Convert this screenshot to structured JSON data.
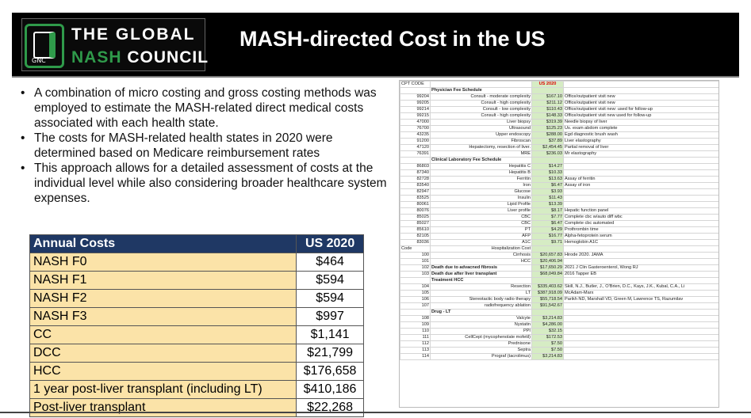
{
  "header": {
    "logo": {
      "line1": "THE GLOBAL",
      "line2_word1": "NASH",
      "line2_word2": "COUNCIL",
      "mark_text": "GNC"
    },
    "title": "MASH-directed Cost in the US"
  },
  "bullets": [
    "A combination of micro costing and gross costing methods was employed to estimate the MASH-related direct medical costs associated with each health state.",
    "The costs for MASH-related health states in 2020 were determined based on Medicare reimbursement rates",
    "This approach allows for a detailed assessment of costs at the individual level while also considering broader healthcare system expenses."
  ],
  "costs_table": {
    "headers": [
      "Annual Costs",
      "US 2020"
    ],
    "rows": [
      [
        "NASH F0",
        "$464"
      ],
      [
        "NASH F1",
        "$594"
      ],
      [
        "NASH F2",
        "$594"
      ],
      [
        "NASH F3",
        "$997"
      ],
      [
        "CC",
        "$1,141"
      ],
      [
        "DCC",
        "$21,799"
      ],
      [
        "HCC",
        "$176,658"
      ],
      [
        "1 year post-liver transplant (including LT)",
        "$410,186"
      ],
      [
        "Post-liver transplant",
        "$22,268"
      ]
    ]
  },
  "cpt_sheet": {
    "rows": [
      {
        "t": "hdr",
        "c": [
          "CPT CODE",
          "",
          "US 2020",
          ""
        ]
      },
      {
        "t": "sec",
        "c": [
          "",
          "Physician Fee Schedule",
          "",
          ""
        ]
      },
      {
        "t": "row",
        "c": [
          "99204",
          "Consult - moderate complexity",
          "$167.10",
          "Office/outpatient visit new"
        ]
      },
      {
        "t": "row",
        "c": [
          "99205",
          "Consult - high complexity",
          "$211.12",
          "Office/outpatient visit new"
        ]
      },
      {
        "t": "row",
        "c": [
          "99214",
          "Consult - low complexity",
          "$110.43",
          "Office/outpatient visit new: used for follow-up"
        ]
      },
      {
        "t": "row",
        "c": [
          "99215",
          "Consult - high complexity",
          "$148.33",
          "Office/outpatient visit new used for follow-up"
        ]
      },
      {
        "t": "row",
        "c": [
          "47000",
          "Liver biopsy",
          "$319.39",
          "Needle biopsy of liver"
        ]
      },
      {
        "t": "row",
        "c": [
          "76700",
          "Ultrasound",
          "$125.23",
          "Us. exam abdom complete"
        ]
      },
      {
        "t": "row",
        "c": [
          "43235",
          "Upper endoscopy",
          "$288.00",
          "Egd diagnostic brush wash"
        ]
      },
      {
        "t": "row",
        "c": [
          "91200",
          "Fibroscan",
          "$37.89",
          "Liver elastography"
        ]
      },
      {
        "t": "row",
        "c": [
          "47120",
          "Hepatectomy, resection of liver.",
          "$2,454.45",
          "Partial removal of liver"
        ]
      },
      {
        "t": "row",
        "c": [
          "76391",
          "MRE",
          "$236.03",
          "Mr elastography"
        ]
      },
      {
        "t": "sec",
        "c": [
          "",
          "Clinical Laboratory Fee Schedule",
          "",
          ""
        ]
      },
      {
        "t": "row",
        "c": [
          "86803",
          "Hepatitis C",
          "$14.27",
          ""
        ]
      },
      {
        "t": "row",
        "c": [
          "87340",
          "Hepatitis B",
          "$10.33",
          ""
        ]
      },
      {
        "t": "row",
        "c": [
          "82728",
          "Ferritin",
          "$13.63",
          "Assay of ferritin"
        ]
      },
      {
        "t": "row",
        "c": [
          "83540",
          "Iron",
          "$6.47",
          "Assay of iron"
        ]
      },
      {
        "t": "row",
        "c": [
          "82947",
          "Glucose",
          "$3.93",
          ""
        ]
      },
      {
        "t": "row",
        "c": [
          "83525",
          "Insulin",
          "$11.43",
          ""
        ]
      },
      {
        "t": "row",
        "c": [
          "80061",
          "Lipid Profile",
          "$13.39",
          ""
        ]
      },
      {
        "t": "row",
        "c": [
          "80076",
          "Liver profile",
          "$8.17",
          "Hepatic function panel"
        ]
      },
      {
        "t": "row",
        "c": [
          "85025",
          "CBC",
          "$7.77",
          "Complete cbc w/auto diff wbc"
        ]
      },
      {
        "t": "row",
        "c": [
          "85027",
          "CBC",
          "$6.47",
          "Complete cbc automated"
        ]
      },
      {
        "t": "row",
        "c": [
          "85610",
          "PT",
          "$4.29",
          "Prothrombin time"
        ]
      },
      {
        "t": "row",
        "c": [
          "82105",
          "AFP",
          "$16.77",
          "Alpha-fetoprotein serum"
        ]
      },
      {
        "t": "row",
        "c": [
          "83036",
          "A1C",
          "$9.71",
          "Hemoglobin A1C"
        ]
      },
      {
        "t": "sub",
        "c": [
          "Code",
          "Hospitalization Cost",
          "",
          ""
        ]
      },
      {
        "t": "row",
        "c": [
          "100",
          "Cirrhosis",
          "$20,657.83",
          "Hirode 2020. JAMA"
        ]
      },
      {
        "t": "row",
        "c": [
          "101",
          "HCC",
          "$20,406.94",
          ""
        ]
      },
      {
        "t": "bold",
        "c": [
          "102",
          "Death due to advacned fibrosis",
          "$17,650.29",
          "2021 J Clin Gasteroenterol, Wong RJ"
        ]
      },
      {
        "t": "bold",
        "c": [
          "103",
          "Death due after liver transplant",
          "$68,049.84",
          "2016 Tapper EB"
        ]
      },
      {
        "t": "sec",
        "c": [
          "",
          "Treatment HCC",
          "",
          ""
        ]
      },
      {
        "t": "row",
        "c": [
          "104",
          "Resection",
          "$335,403.62",
          "Skill, N.J., Butler, J., O'Brien, D.C., Kays, J.K., Kubal, C.A., Li"
        ]
      },
      {
        "t": "row",
        "c": [
          "105",
          "LT",
          "$387,918.09",
          "McAdam-Marx"
        ]
      },
      {
        "t": "row",
        "c": [
          "106",
          "Stereotactic body radio therapy",
          "$55,718.54",
          "Parikh ND, Marshall VD, Green M, Lawrence TS, Razumilav"
        ]
      },
      {
        "t": "row",
        "c": [
          "107",
          "radiofrequency ablation",
          "$91,542.67",
          ""
        ]
      },
      {
        "t": "sec",
        "c": [
          "",
          "Drug - LT",
          "",
          ""
        ]
      },
      {
        "t": "row",
        "c": [
          "108",
          "Valcyte",
          "$3,214.83",
          ""
        ]
      },
      {
        "t": "row",
        "c": [
          "109",
          "Nystatin",
          "$4,286.00",
          ""
        ]
      },
      {
        "t": "row",
        "c": [
          "110",
          "PPI",
          "$32.15",
          ""
        ]
      },
      {
        "t": "row",
        "c": [
          "111",
          "CellCept (mycophenolate mofetil)",
          "$172.53",
          ""
        ]
      },
      {
        "t": "row",
        "c": [
          "112",
          "Prednisone",
          "$7.50",
          ""
        ]
      },
      {
        "t": "row",
        "c": [
          "113",
          "Septra",
          "$7.50",
          ""
        ]
      },
      {
        "t": "row",
        "c": [
          "114",
          "Prograf (tacrolimus)",
          "$3,214.83",
          ""
        ]
      }
    ]
  }
}
